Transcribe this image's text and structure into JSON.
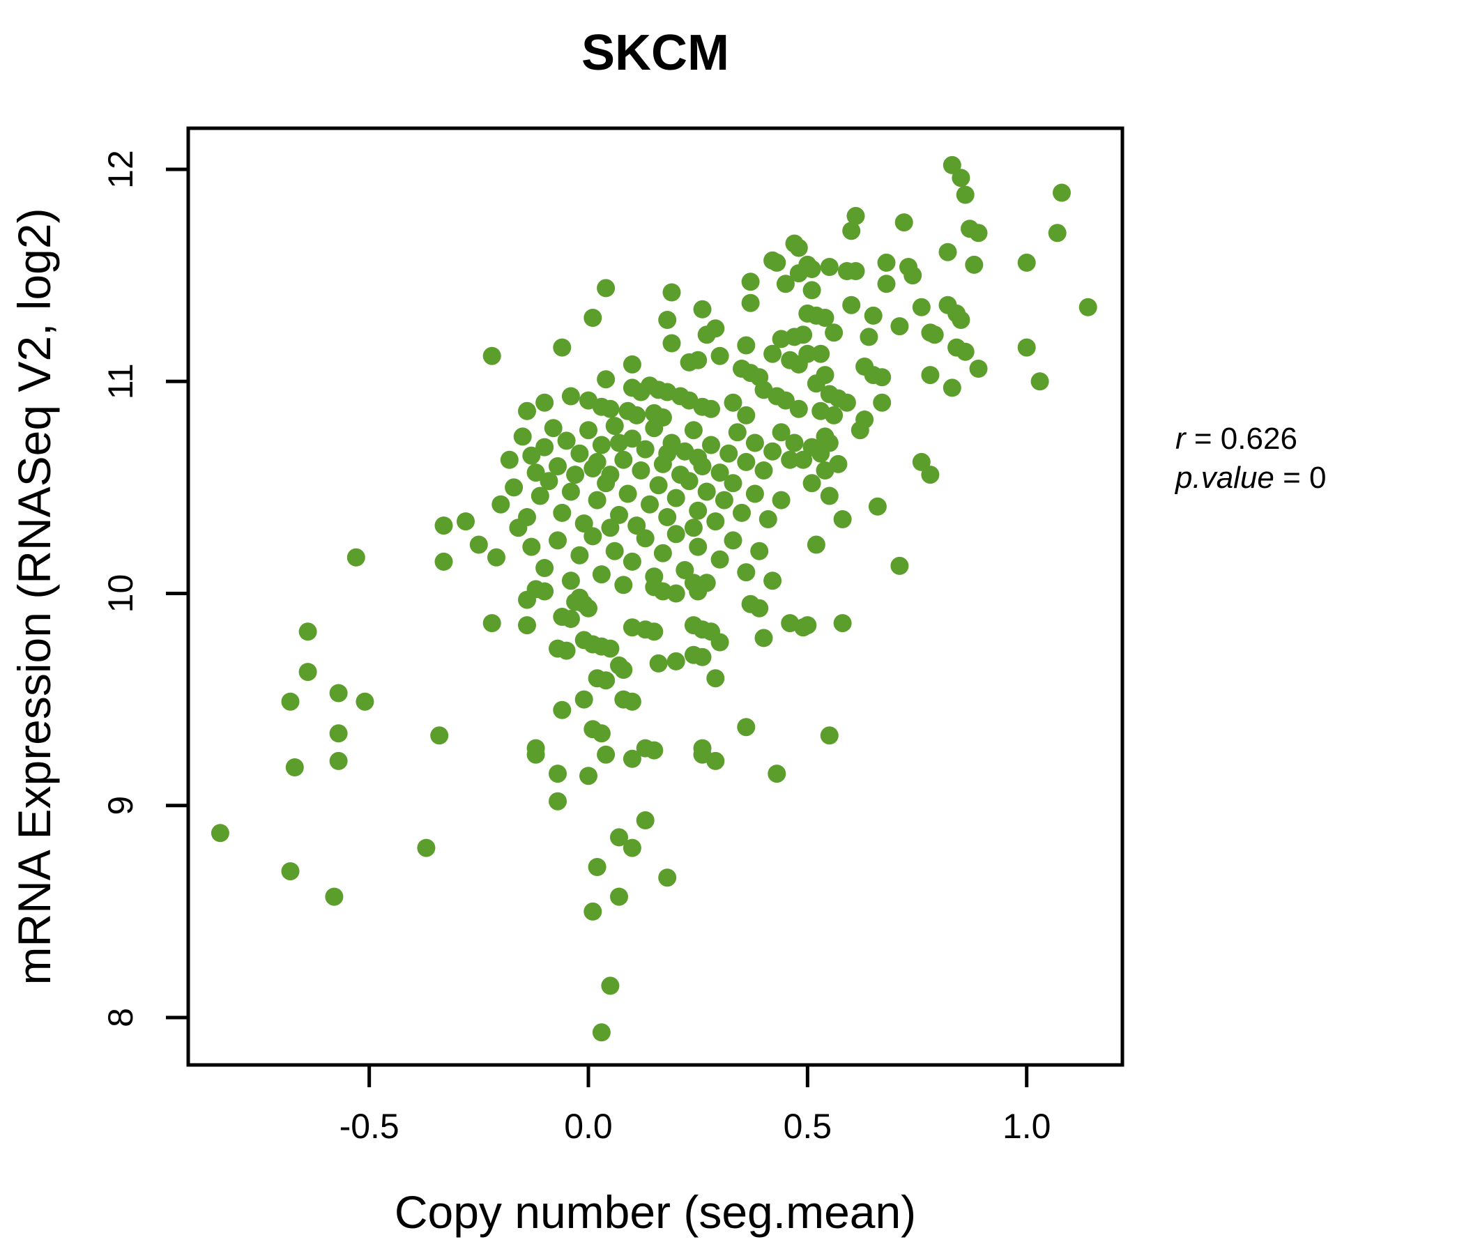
{
  "chart_data": {
    "type": "scatter",
    "title": "SKCM",
    "xlabel": "Copy number (seg.mean)",
    "ylabel": "mRNA Expression (RNASeq V2, log2)",
    "x_ticks": [
      -0.5,
      0.0,
      0.5,
      1.0
    ],
    "x_tick_labels": [
      "-0.5",
      "0.0",
      "0.5",
      "1.0"
    ],
    "y_ticks": [
      8,
      9,
      10,
      11,
      12
    ],
    "y_tick_labels": [
      "8",
      "9",
      "10",
      "11",
      "12"
    ],
    "xlim": [
      -0.91,
      1.22
    ],
    "ylim": [
      7.78,
      12.19
    ],
    "grid": false,
    "legend": "none",
    "title_color": "#55a821",
    "point_color": "#5c9e2b",
    "points": [
      [
        0.83,
        12.02
      ],
      [
        0.85,
        11.96
      ],
      [
        0.86,
        11.88
      ],
      [
        1.08,
        11.89
      ],
      [
        0.61,
        11.78
      ],
      [
        0.6,
        11.71
      ],
      [
        0.72,
        11.75
      ],
      [
        0.87,
        11.72
      ],
      [
        0.89,
        11.7
      ],
      [
        1.07,
        11.7
      ],
      [
        0.82,
        11.61
      ],
      [
        0.88,
        11.55
      ],
      [
        1.0,
        11.56
      ],
      [
        0.47,
        11.65
      ],
      [
        0.48,
        11.63
      ],
      [
        0.42,
        11.57
      ],
      [
        0.43,
        11.56
      ],
      [
        0.5,
        11.55
      ],
      [
        0.48,
        11.51
      ],
      [
        0.51,
        11.53
      ],
      [
        0.55,
        11.54
      ],
      [
        0.59,
        11.52
      ],
      [
        0.61,
        11.52
      ],
      [
        0.68,
        11.56
      ],
      [
        0.73,
        11.54
      ],
      [
        0.74,
        11.5
      ],
      [
        0.04,
        11.44
      ],
      [
        0.19,
        11.42
      ],
      [
        0.01,
        11.3
      ],
      [
        0.26,
        11.34
      ],
      [
        0.18,
        11.29
      ],
      [
        0.29,
        11.25
      ],
      [
        0.27,
        11.22
      ],
      [
        0.37,
        11.47
      ],
      [
        0.37,
        11.37
      ],
      [
        0.45,
        11.46
      ],
      [
        0.68,
        11.46
      ],
      [
        0.51,
        11.43
      ],
      [
        0.6,
        11.36
      ],
      [
        0.52,
        11.31
      ],
      [
        0.54,
        11.3
      ],
      [
        0.65,
        11.31
      ],
      [
        0.76,
        11.35
      ],
      [
        0.82,
        11.36
      ],
      [
        0.84,
        11.32
      ],
      [
        0.85,
        11.29
      ],
      [
        1.14,
        11.35
      ],
      [
        0.5,
        11.32
      ],
      [
        -0.22,
        11.12
      ],
      [
        -0.06,
        11.16
      ],
      [
        0.19,
        11.18
      ],
      [
        0.3,
        11.12
      ],
      [
        0.1,
        11.08
      ],
      [
        0.23,
        11.09
      ],
      [
        0.25,
        11.1
      ],
      [
        0.04,
        11.01
      ],
      [
        0.36,
        11.17
      ],
      [
        0.44,
        11.2
      ],
      [
        0.47,
        11.21
      ],
      [
        0.49,
        11.22
      ],
      [
        0.42,
        11.13
      ],
      [
        0.46,
        11.1
      ],
      [
        0.48,
        11.08
      ],
      [
        0.5,
        11.13
      ],
      [
        0.35,
        11.06
      ],
      [
        0.37,
        11.04
      ],
      [
        0.39,
        11.02
      ],
      [
        0.56,
        11.23
      ],
      [
        0.64,
        11.21
      ],
      [
        0.71,
        11.26
      ],
      [
        0.78,
        11.23
      ],
      [
        0.79,
        11.22
      ],
      [
        0.84,
        11.16
      ],
      [
        0.86,
        11.14
      ],
      [
        1.0,
        11.16
      ],
      [
        0.89,
        11.06
      ],
      [
        0.78,
        11.03
      ],
      [
        1.03,
        11.0
      ],
      [
        0.53,
        11.13
      ],
      [
        0.63,
        11.07
      ],
      [
        0.65,
        11.03
      ],
      [
        0.67,
        11.02
      ],
      [
        0.54,
        11.03
      ],
      [
        0.52,
        10.99
      ],
      [
        0.1,
        10.97
      ],
      [
        0.12,
        10.95
      ],
      [
        0.14,
        10.98
      ],
      [
        0.16,
        10.96
      ],
      [
        0.18,
        10.95
      ],
      [
        -0.04,
        10.93
      ],
      [
        0.03,
        10.88
      ],
      [
        0.05,
        10.87
      ],
      [
        0.21,
        10.93
      ],
      [
        0.23,
        10.91
      ],
      [
        0.26,
        10.88
      ],
      [
        0.28,
        10.87
      ],
      [
        0.43,
        10.93
      ],
      [
        0.45,
        10.91
      ],
      [
        0.48,
        10.87
      ],
      [
        0.09,
        10.86
      ],
      [
        0.11,
        10.84
      ],
      [
        0.15,
        10.85
      ],
      [
        0.17,
        10.83
      ],
      [
        0.83,
        10.97
      ],
      [
        0.67,
        10.9
      ],
      [
        0.55,
        10.94
      ],
      [
        0.57,
        10.92
      ],
      [
        0.59,
        10.9
      ],
      [
        0.53,
        10.86
      ],
      [
        0.56,
        10.84
      ],
      [
        0.63,
        10.82
      ],
      [
        -0.1,
        10.9
      ],
      [
        -0.14,
        10.86
      ],
      [
        0.0,
        10.91
      ],
      [
        0.33,
        10.9
      ],
      [
        0.36,
        10.84
      ],
      [
        0.4,
        10.96
      ],
      [
        -0.18,
        10.63
      ],
      [
        -0.15,
        10.74
      ],
      [
        -0.12,
        10.57
      ],
      [
        -0.1,
        10.69
      ],
      [
        -0.08,
        10.78
      ],
      [
        -0.07,
        10.6
      ],
      [
        -0.05,
        10.72
      ],
      [
        -0.03,
        10.56
      ],
      [
        -0.02,
        10.66
      ],
      [
        0.0,
        10.77
      ],
      [
        0.01,
        10.59
      ],
      [
        0.03,
        10.7
      ],
      [
        0.05,
        10.56
      ],
      [
        0.06,
        10.79
      ],
      [
        0.08,
        10.63
      ],
      [
        0.1,
        10.73
      ],
      [
        0.12,
        10.58
      ],
      [
        0.13,
        10.68
      ],
      [
        0.15,
        10.78
      ],
      [
        0.17,
        10.61
      ],
      [
        0.19,
        10.71
      ],
      [
        0.21,
        10.56
      ],
      [
        0.22,
        10.67
      ],
      [
        0.24,
        10.77
      ],
      [
        0.26,
        10.6
      ],
      [
        0.28,
        10.7
      ],
      [
        0.3,
        10.57
      ],
      [
        0.32,
        10.66
      ],
      [
        0.34,
        10.76
      ],
      [
        0.36,
        10.62
      ],
      [
        0.38,
        10.71
      ],
      [
        0.4,
        10.58
      ],
      [
        0.42,
        10.67
      ],
      [
        0.44,
        10.76
      ],
      [
        0.46,
        10.63
      ],
      [
        0.07,
        10.71
      ],
      [
        -0.13,
        10.65
      ],
      [
        0.25,
        10.64
      ],
      [
        0.18,
        10.66
      ],
      [
        0.02,
        10.62
      ],
      [
        0.47,
        10.71
      ],
      [
        0.49,
        10.63
      ],
      [
        0.54,
        10.74
      ],
      [
        0.55,
        10.71
      ],
      [
        0.62,
        10.77
      ],
      [
        0.51,
        10.69
      ],
      [
        0.53,
        10.66
      ],
      [
        0.57,
        10.61
      ],
      [
        0.54,
        10.58
      ],
      [
        0.76,
        10.62
      ],
      [
        0.78,
        10.56
      ],
      [
        -0.2,
        10.42
      ],
      [
        -0.17,
        10.5
      ],
      [
        -0.14,
        10.36
      ],
      [
        -0.11,
        10.46
      ],
      [
        -0.09,
        10.53
      ],
      [
        -0.06,
        10.38
      ],
      [
        -0.04,
        10.48
      ],
      [
        -0.01,
        10.33
      ],
      [
        0.02,
        10.44
      ],
      [
        0.04,
        10.52
      ],
      [
        0.07,
        10.37
      ],
      [
        0.09,
        10.47
      ],
      [
        0.11,
        10.32
      ],
      [
        0.14,
        10.42
      ],
      [
        0.16,
        10.51
      ],
      [
        0.18,
        10.36
      ],
      [
        0.2,
        10.45
      ],
      [
        0.23,
        10.53
      ],
      [
        0.25,
        10.39
      ],
      [
        0.27,
        10.48
      ],
      [
        0.29,
        10.34
      ],
      [
        0.31,
        10.44
      ],
      [
        0.33,
        10.52
      ],
      [
        0.35,
        10.38
      ],
      [
        0.38,
        10.47
      ],
      [
        0.41,
        10.35
      ],
      [
        0.44,
        10.44
      ],
      [
        0.24,
        10.31
      ],
      [
        0.05,
        10.31
      ],
      [
        -0.16,
        10.31
      ],
      [
        0.51,
        10.52
      ],
      [
        0.55,
        10.46
      ],
      [
        0.66,
        10.41
      ],
      [
        0.58,
        10.35
      ],
      [
        0.52,
        10.23
      ],
      [
        0.71,
        10.13
      ],
      [
        -0.53,
        10.17
      ],
      [
        -0.33,
        10.32
      ],
      [
        -0.28,
        10.34
      ],
      [
        -0.25,
        10.23
      ],
      [
        -0.33,
        10.15
      ],
      [
        -0.21,
        10.17
      ],
      [
        -0.13,
        10.22
      ],
      [
        -0.1,
        10.12
      ],
      [
        -0.07,
        10.25
      ],
      [
        -0.04,
        10.06
      ],
      [
        -0.02,
        10.18
      ],
      [
        0.01,
        10.27
      ],
      [
        0.03,
        10.09
      ],
      [
        0.06,
        10.2
      ],
      [
        0.08,
        10.04
      ],
      [
        0.1,
        10.15
      ],
      [
        0.13,
        10.26
      ],
      [
        0.15,
        10.08
      ],
      [
        0.17,
        10.19
      ],
      [
        0.2,
        10.28
      ],
      [
        0.22,
        10.11
      ],
      [
        0.25,
        10.22
      ],
      [
        0.27,
        10.05
      ],
      [
        0.3,
        10.16
      ],
      [
        0.33,
        10.25
      ],
      [
        0.36,
        10.1
      ],
      [
        0.39,
        10.2
      ],
      [
        0.42,
        10.06
      ],
      [
        -0.12,
        10.02
      ],
      [
        0.24,
        10.05
      ],
      [
        0.15,
        10.03
      ],
      [
        0.17,
        10.01
      ],
      [
        0.2,
        10.0
      ],
      [
        0.25,
        10.01
      ],
      [
        -0.1,
        10.01
      ],
      [
        -0.14,
        9.97
      ],
      [
        -0.02,
        9.98
      ],
      [
        -0.03,
        9.96
      ],
      [
        -0.01,
        9.95
      ],
      [
        0.0,
        9.93
      ],
      [
        -0.06,
        9.89
      ],
      [
        -0.04,
        9.88
      ],
      [
        -0.14,
        9.85
      ],
      [
        -0.07,
        9.74
      ],
      [
        -0.05,
        9.73
      ],
      [
        -0.01,
        9.78
      ],
      [
        0.01,
        9.76
      ],
      [
        0.03,
        9.75
      ],
      [
        0.05,
        9.74
      ],
      [
        0.1,
        9.84
      ],
      [
        0.13,
        9.83
      ],
      [
        0.15,
        9.82
      ],
      [
        0.24,
        9.85
      ],
      [
        0.26,
        9.83
      ],
      [
        0.28,
        9.82
      ],
      [
        0.3,
        9.77
      ],
      [
        0.37,
        9.95
      ],
      [
        0.39,
        9.93
      ],
      [
        0.46,
        9.86
      ],
      [
        0.49,
        9.84
      ],
      [
        0.4,
        9.79
      ],
      [
        -0.22,
        9.86
      ],
      [
        -0.64,
        9.82
      ],
      [
        0.58,
        9.86
      ],
      [
        0.5,
        9.85
      ],
      [
        0.16,
        9.67
      ],
      [
        0.2,
        9.68
      ],
      [
        0.24,
        9.71
      ],
      [
        0.26,
        9.7
      ],
      [
        0.29,
        9.6
      ],
      [
        0.07,
        9.66
      ],
      [
        0.08,
        9.64
      ],
      [
        0.02,
        9.6
      ],
      [
        0.04,
        9.59
      ],
      [
        -0.64,
        9.63
      ],
      [
        -0.68,
        9.49
      ],
      [
        -0.57,
        9.53
      ],
      [
        -0.51,
        9.49
      ],
      [
        -0.01,
        9.5
      ],
      [
        0.08,
        9.5
      ],
      [
        0.1,
        9.49
      ],
      [
        -0.06,
        9.45
      ],
      [
        0.36,
        9.37
      ],
      [
        0.01,
        9.36
      ],
      [
        0.03,
        9.34
      ],
      [
        -0.57,
        9.34
      ],
      [
        -0.34,
        9.33
      ],
      [
        0.55,
        9.33
      ],
      [
        0.13,
        9.27
      ],
      [
        0.15,
        9.26
      ],
      [
        -0.12,
        9.27
      ],
      [
        0.26,
        9.27
      ],
      [
        -0.12,
        9.24
      ],
      [
        0.04,
        9.24
      ],
      [
        0.1,
        9.22
      ],
      [
        0.26,
        9.24
      ],
      [
        0.29,
        9.21
      ],
      [
        0.43,
        9.15
      ],
      [
        -0.07,
        9.15
      ],
      [
        0.0,
        9.14
      ],
      [
        -0.67,
        9.18
      ],
      [
        -0.57,
        9.21
      ],
      [
        -0.07,
        9.02
      ],
      [
        0.13,
        8.93
      ],
      [
        -0.84,
        8.87
      ],
      [
        -0.37,
        8.8
      ],
      [
        0.07,
        8.85
      ],
      [
        0.1,
        8.8
      ],
      [
        -0.68,
        8.69
      ],
      [
        0.02,
        8.71
      ],
      [
        0.18,
        8.66
      ],
      [
        0.07,
        8.57
      ],
      [
        -0.58,
        8.57
      ],
      [
        0.01,
        8.5
      ],
      [
        0.05,
        8.15
      ],
      [
        0.03,
        7.93
      ]
    ]
  },
  "stats": {
    "r_label": "r",
    "r_eq": " = 0.626",
    "p_label": "p.value",
    "p_eq": " = 0"
  }
}
